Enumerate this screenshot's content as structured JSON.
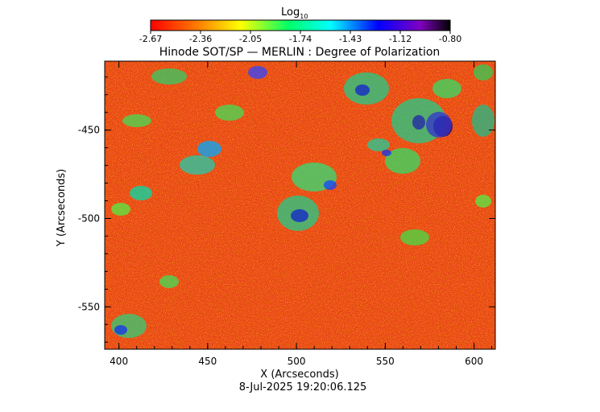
{
  "colorbar": {
    "label_main": "Log",
    "label_sub": "10",
    "ticks": [
      "-2.67",
      "-2.36",
      "-2.05",
      "-1.74",
      "-1.43",
      "-1.12",
      "-0.80"
    ]
  },
  "title": "Hinode SOT/SP — MERLIN : Degree of Polarization",
  "x_axis": {
    "label": "X (Arcseconds)",
    "ticks": [
      "400",
      "450",
      "500",
      "550",
      "600"
    ],
    "range": [
      392,
      612
    ]
  },
  "y_axis": {
    "label": "Y (Arcseconds)",
    "ticks": [
      "-450",
      "-500",
      "-550"
    ],
    "range": [
      -574,
      -411
    ]
  },
  "timestamp": "8-Jul-2025 19:20:06.125",
  "colors": {
    "background_map": "#e8431c",
    "low": "#ff0000",
    "mid": "#00ff66",
    "high": "#000000"
  }
}
